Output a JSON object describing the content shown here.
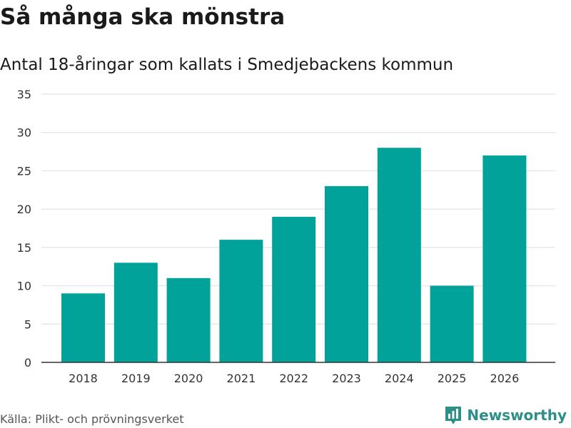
{
  "header": {
    "title": "Så många ska mönstra",
    "subtitle": "Antal 18-åringar som kallats i Smedjebackens kommun"
  },
  "footer": {
    "source": "Källa: Plikt- och prövningsverket",
    "brand": "Newsworthy"
  },
  "colors": {
    "bar": "#00a29a",
    "brand": "#2d8f87",
    "grid": "#e3e3e3",
    "axis": "#333333",
    "tick_text": "#333333"
  },
  "icons": {
    "brand_logo": "bar-chart-logo-icon"
  },
  "chart_data": {
    "type": "bar",
    "title": "Så många ska mönstra",
    "subtitle": "Antal 18-åringar som kallats i Smedjebackens kommun",
    "categories": [
      "2018",
      "2019",
      "2020",
      "2021",
      "2022",
      "2023",
      "2024",
      "2025",
      "2026"
    ],
    "values": [
      9,
      13,
      11,
      16,
      19,
      23,
      28,
      10,
      27
    ],
    "xlabel": "",
    "ylabel": "",
    "ylim": [
      0,
      35
    ],
    "yticks": [
      0,
      5,
      10,
      15,
      20,
      25,
      30,
      35
    ],
    "grid": true,
    "legend": "none"
  }
}
